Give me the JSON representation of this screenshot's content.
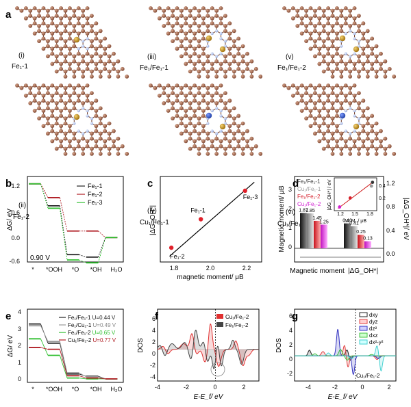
{
  "panel_a": {
    "letter": "a",
    "structures": [
      {
        "roman": "(i)",
        "label": "Fe₁-1",
        "dopants": [
          "Fe"
        ]
      },
      {
        "roman": "(ii)",
        "label": "Fe₁-2",
        "dopants": [
          "Fe"
        ]
      },
      {
        "roman": "(iii)",
        "label": "Fe₁/Fe₁-1",
        "dopants": [
          "Fe",
          "Fe"
        ]
      },
      {
        "roman": "(iv)",
        "label": "Cu₁/Fe₁-1",
        "dopants": [
          "Cu",
          "Fe"
        ]
      },
      {
        "roman": "(v)",
        "label": "Fe₁/Fe₁-2",
        "dopants": [
          "Fe",
          "Fe"
        ]
      },
      {
        "roman": "(vi)",
        "label": "Cu₁/Fe₁-2",
        "dopants": [
          "Cu",
          "Fe"
        ]
      }
    ],
    "colors": {
      "carbon": "#a0644a",
      "nitrogen": "#b4c6ea",
      "iron": "#c08d1a",
      "copper": "#2a52c4",
      "bond": "#7a4a36"
    }
  },
  "panel_b": {
    "letter": "b",
    "annotation": "0.90 V",
    "chart_data": {
      "type": "line",
      "title": "",
      "ylabel": "ΔG/ eV",
      "categories": [
        "*",
        "*OOH",
        "*O",
        "*OH",
        "H₂O"
      ],
      "ylim": [
        -0.6,
        1.5
      ],
      "yticks": [
        "1.2",
        "0.6",
        "0.0",
        "-0.6"
      ],
      "series": [
        {
          "name": "Fe₁-1",
          "color": "#222222",
          "values": [
            1.32,
            0.78,
            -0.42,
            -0.48,
            0.0
          ]
        },
        {
          "name": "Fe₁-2",
          "color": "#b01e24",
          "values": [
            1.32,
            0.98,
            0.16,
            0.16,
            0.0
          ]
        },
        {
          "name": "Fe₁-3",
          "color": "#2fbf2f",
          "values": [
            1.32,
            0.72,
            -0.55,
            -0.62,
            0.0
          ]
        }
      ]
    }
  },
  "panel_c": {
    "letter": "c",
    "chart_data": {
      "type": "scatter",
      "xlabel": "magnetic moment/ μB",
      "ylabel": "|ΔG_OH*|",
      "xlim": [
        1.7,
        2.25
      ],
      "ylim": [
        0.05,
        0.65
      ],
      "xticks": [
        "1.8",
        "2.0",
        "2.2"
      ],
      "points": [
        {
          "label": "Fe₁-2",
          "x": 1.76,
          "y": 0.15
        },
        {
          "label": "Fe₁-1",
          "x": 1.92,
          "y": 0.35
        },
        {
          "label": "Fe₁-3",
          "x": 2.16,
          "y": 0.55
        }
      ],
      "fit": {
        "x": [
          1.75,
          2.21
        ],
        "y": [
          0.09,
          0.61
        ]
      }
    }
  },
  "panel_d": {
    "letter": "d",
    "chart_data": {
      "type": "bar",
      "ylabel_left": "Magnetic moment/ μB",
      "ylabel_right": "|ΔG_OH*|/ eV",
      "ylim_left": [
        -0.25,
        4.4
      ],
      "ylim_right": [
        -0.03,
        1.3
      ],
      "yticks_left": [
        "3",
        "2",
        "1",
        "0"
      ],
      "yticks_right": [
        "1.2",
        "0.8",
        "0.4",
        "0.0"
      ],
      "group_labels": [
        "Magnetic moment",
        "|ΔG_OH*|"
      ],
      "series": [
        {
          "name": "Fe₁/Fe₁-1",
          "color": "#333333",
          "moment": 1.87,
          "dg": 0.46,
          "moment_label": "1.87",
          "dg_label": "0.46"
        },
        {
          "name": "Cu₁/Fe₁-1",
          "color": "#999999",
          "moment": 1.85,
          "dg": 0.41,
          "moment_label": "1.85",
          "dg_label": "0.41"
        },
        {
          "name": "Fe₁/Fe₁-2",
          "color": "#d6202b",
          "moment": 1.45,
          "dg": 0.25,
          "moment_label": "1.45",
          "dg_label": "0.25"
        },
        {
          "name": "Cu₁/Fe₁-2",
          "color": "#d21ed2",
          "moment": 1.25,
          "dg": 0.13,
          "moment_label": "1.25",
          "dg_label": "0.13"
        }
      ],
      "inset": {
        "xlabel": "M. M. / μB",
        "ylabel": "|ΔG_OH*| / eV",
        "xticks": [
          "1.2",
          "1.5",
          "1.8"
        ],
        "yticks": [
          "0.4",
          "0.2"
        ],
        "xlim": [
          1.15,
          1.95
        ],
        "ylim": [
          0.08,
          0.52
        ]
      }
    }
  },
  "panel_e": {
    "letter": "e",
    "chart_data": {
      "type": "line",
      "ylabel": "ΔG/ eV",
      "categories": [
        "*",
        "*OOH",
        "*O",
        "*OH",
        "H₂O"
      ],
      "ylim": [
        -0.2,
        4.0
      ],
      "yticks": [
        "4",
        "3",
        "2",
        "1",
        "0"
      ],
      "series": [
        {
          "name": "Fe₁/Fe₁-1",
          "u": "U=0.44 V",
          "color": "#222222",
          "values": [
            3.15,
            2.05,
            0.28,
            0.15,
            0.0
          ]
        },
        {
          "name": "Fe₁/Cu₁-1",
          "u": "U=0.49 V",
          "color": "#9a9a9a",
          "values": [
            3.05,
            2.15,
            0.35,
            0.12,
            0.0
          ]
        },
        {
          "name": "Fe₁/Fe₁-2",
          "u": "U=0.65 V",
          "color": "#2fbf2f",
          "values": [
            2.3,
            1.35,
            0.05,
            0.0,
            0.0
          ]
        },
        {
          "name": "Cu₁/Fe₁-2",
          "u": "U=0.77 V",
          "color": "#b01e24",
          "values": [
            1.8,
            1.7,
            0.18,
            0.05,
            0.0
          ]
        }
      ]
    }
  },
  "panel_f": {
    "letter": "f",
    "chart_data": {
      "type": "area",
      "xlabel": "E-E_f/ eV",
      "ylabel": "DOS",
      "xlim": [
        -4,
        3
      ],
      "ylim": [
        -5.5,
        7
      ],
      "xticks": [
        "-4",
        "-2",
        "0",
        "2"
      ],
      "yticks": [
        "6",
        "4",
        "2",
        "0",
        "-2",
        "-4"
      ],
      "series": [
        {
          "name": "Cu₁/Fe₁-2",
          "color": "#e03030",
          "peaks": [
            [
              -3.6,
              0.6,
              0.15
            ],
            [
              -2.2,
              1.0,
              0.2
            ],
            [
              -1.6,
              4.6,
              0.15
            ],
            [
              -0.9,
              2.0,
              0.15
            ],
            [
              -0.35,
              4.6,
              0.12
            ],
            [
              0.3,
              1.2,
              0.12
            ],
            [
              1.4,
              1.5,
              0.12
            ],
            [
              -3.3,
              -0.8,
              0.15
            ],
            [
              -1.5,
              -2.2,
              0.2
            ],
            [
              -0.8,
              -3.5,
              0.18
            ],
            [
              0.25,
              -4.0,
              0.15
            ],
            [
              1.9,
              -2.8,
              0.15
            ],
            [
              2.3,
              -1.0,
              0.15
            ]
          ]
        },
        {
          "name": "Fe₁/Fe₁-2",
          "color": "#444444",
          "peaks": [
            [
              -3.8,
              0.8,
              0.15
            ],
            [
              -3.0,
              1.0,
              0.2
            ],
            [
              -2.1,
              1.3,
              0.2
            ],
            [
              -1.4,
              4.9,
              0.15
            ],
            [
              -0.75,
              2.6,
              0.15
            ],
            [
              0.15,
              1.3,
              0.12
            ],
            [
              1.2,
              1.6,
              0.12
            ],
            [
              -3.5,
              -1.2,
              0.15
            ],
            [
              -1.6,
              -2.8,
              0.2
            ],
            [
              -0.6,
              -3.3,
              0.15
            ],
            [
              -0.1,
              -3.5,
              0.12
            ],
            [
              0.4,
              -3.0,
              0.12
            ],
            [
              1.8,
              -2.6,
              0.15
            ]
          ]
        }
      ]
    }
  },
  "panel_g": {
    "letter": "g",
    "annotation": "Cu₁/Fe₁-2",
    "chart_data": {
      "type": "line",
      "xlabel": "E-E_f/ eV",
      "ylabel": "DOS",
      "xlim": [
        -4.5,
        3
      ],
      "ylim": [
        -3.5,
        6.5
      ],
      "xticks": [
        "-4",
        "-2",
        "0",
        "2"
      ],
      "yticks": [
        "6",
        "4",
        "2",
        "0",
        "-2"
      ],
      "series": [
        {
          "name": "dxy",
          "color": "#222222",
          "peaks": [
            [
              -3.4,
              0.8,
              0.1
            ],
            [
              -0.6,
              0.9,
              0.12
            ],
            [
              -0.4,
              -0.8,
              0.1
            ]
          ]
        },
        {
          "name": "dyz",
          "color": "#e04040",
          "peaks": [
            [
              -2.4,
              0.6,
              0.12
            ],
            [
              -0.8,
              1.5,
              0.1
            ],
            [
              -0.55,
              -1.6,
              0.1
            ],
            [
              1.6,
              -0.5,
              0.12
            ]
          ]
        },
        {
          "name": "dz²",
          "color": "#3030c0",
          "peaks": [
            [
              -1.3,
              3.7,
              0.1
            ],
            [
              -0.15,
              -2.6,
              0.1
            ],
            [
              1.7,
              -0.4,
              0.12
            ]
          ]
        },
        {
          "name": "dxz",
          "color": "#40c040",
          "peaks": [
            [
              -3.0,
              0.3,
              0.12
            ],
            [
              -1.1,
              0.9,
              0.12
            ],
            [
              -0.6,
              -0.6,
              0.12
            ],
            [
              1.2,
              0.2,
              0.12
            ]
          ]
        },
        {
          "name": "dx²-y²",
          "color": "#40d0d0",
          "peaks": [
            [
              -2.0,
              0.4,
              0.12
            ],
            [
              -0.3,
              -0.4,
              0.12
            ],
            [
              1.6,
              1.4,
              0.1
            ],
            [
              1.9,
              -2.1,
              0.1
            ]
          ]
        }
      ]
    }
  }
}
